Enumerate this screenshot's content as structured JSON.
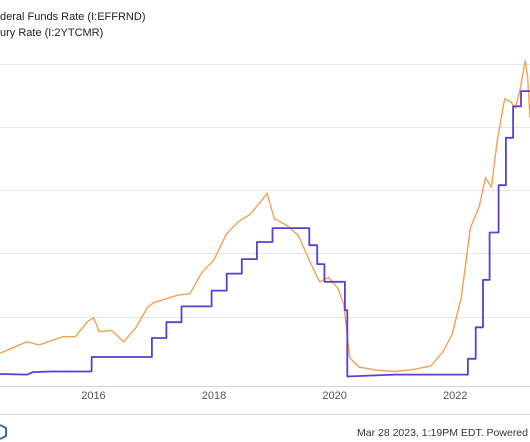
{
  "chart_data": {
    "type": "line",
    "title": "",
    "xlabel": "",
    "ylabel": "",
    "xlim": [
      2014.45,
      2023.24
    ],
    "ylim": [
      -0.1,
      5.3
    ],
    "y_gridlines": [
      1,
      2,
      3,
      4,
      5
    ],
    "grid": true,
    "x_ticks": [
      {
        "value": 2016,
        "label": "2016"
      },
      {
        "value": 2018,
        "label": "2018"
      },
      {
        "value": 2020,
        "label": "2020"
      },
      {
        "value": 2022,
        "label": "2022"
      }
    ],
    "legend": {
      "placement": "top-left",
      "entries": [
        {
          "text": "deral Funds Rate (I:EFFRND)",
          "color": "#5b3fd0"
        },
        {
          "text": "ury Rate (I:2YTCMR)",
          "color": "#f5a055"
        }
      ]
    },
    "series": [
      {
        "color": "#5b3fd0",
        "step": true,
        "points": [
          [
            2014.45,
            0.09
          ],
          [
            2014.9,
            0.08
          ],
          [
            2015.0,
            0.12
          ],
          [
            2015.3,
            0.13
          ],
          [
            2015.97,
            0.13
          ],
          [
            2015.97,
            0.36
          ],
          [
            2016.97,
            0.36
          ],
          [
            2016.97,
            0.66
          ],
          [
            2017.21,
            0.66
          ],
          [
            2017.21,
            0.91
          ],
          [
            2017.46,
            0.91
          ],
          [
            2017.46,
            1.16
          ],
          [
            2017.96,
            1.16
          ],
          [
            2017.96,
            1.41
          ],
          [
            2018.21,
            1.41
          ],
          [
            2018.21,
            1.68
          ],
          [
            2018.46,
            1.68
          ],
          [
            2018.46,
            1.91
          ],
          [
            2018.71,
            1.91
          ],
          [
            2018.71,
            2.18
          ],
          [
            2018.97,
            2.18
          ],
          [
            2018.97,
            2.4
          ],
          [
            2019.58,
            2.4
          ],
          [
            2019.58,
            2.13
          ],
          [
            2019.71,
            2.13
          ],
          [
            2019.71,
            1.83
          ],
          [
            2019.83,
            1.83
          ],
          [
            2019.83,
            1.55
          ],
          [
            2020.17,
            1.55
          ],
          [
            2020.17,
            1.1
          ],
          [
            2020.21,
            1.1
          ],
          [
            2020.21,
            0.05
          ],
          [
            2021.0,
            0.08
          ],
          [
            2021.5,
            0.08
          ],
          [
            2022.21,
            0.08
          ],
          [
            2022.21,
            0.33
          ],
          [
            2022.34,
            0.33
          ],
          [
            2022.34,
            0.83
          ],
          [
            2022.46,
            0.83
          ],
          [
            2022.46,
            1.58
          ],
          [
            2022.57,
            1.58
          ],
          [
            2022.57,
            2.33
          ],
          [
            2022.72,
            2.33
          ],
          [
            2022.72,
            3.08
          ],
          [
            2022.84,
            3.08
          ],
          [
            2022.84,
            3.83
          ],
          [
            2022.96,
            3.83
          ],
          [
            2022.96,
            4.33
          ],
          [
            2023.09,
            4.33
          ],
          [
            2023.09,
            4.57
          ],
          [
            2023.24,
            4.57
          ]
        ]
      },
      {
        "color": "#f5a055",
        "step": false,
        "points": [
          [
            2014.45,
            0.42
          ],
          [
            2014.7,
            0.52
          ],
          [
            2014.9,
            0.6
          ],
          [
            2015.1,
            0.55
          ],
          [
            2015.3,
            0.62
          ],
          [
            2015.5,
            0.68
          ],
          [
            2015.7,
            0.68
          ],
          [
            2015.9,
            0.92
          ],
          [
            2016.0,
            0.98
          ],
          [
            2016.1,
            0.76
          ],
          [
            2016.3,
            0.78
          ],
          [
            2016.5,
            0.6
          ],
          [
            2016.7,
            0.82
          ],
          [
            2016.9,
            1.15
          ],
          [
            2017.0,
            1.22
          ],
          [
            2017.2,
            1.28
          ],
          [
            2017.4,
            1.34
          ],
          [
            2017.6,
            1.36
          ],
          [
            2017.8,
            1.7
          ],
          [
            2018.0,
            1.9
          ],
          [
            2018.2,
            2.3
          ],
          [
            2018.4,
            2.5
          ],
          [
            2018.6,
            2.62
          ],
          [
            2018.8,
            2.85
          ],
          [
            2018.88,
            2.95
          ],
          [
            2019.0,
            2.55
          ],
          [
            2019.2,
            2.45
          ],
          [
            2019.4,
            2.28
          ],
          [
            2019.6,
            1.85
          ],
          [
            2019.75,
            1.55
          ],
          [
            2019.9,
            1.62
          ],
          [
            2020.05,
            1.45
          ],
          [
            2020.15,
            1.2
          ],
          [
            2020.25,
            0.35
          ],
          [
            2020.4,
            0.2
          ],
          [
            2020.7,
            0.15
          ],
          [
            2021.0,
            0.13
          ],
          [
            2021.3,
            0.16
          ],
          [
            2021.6,
            0.22
          ],
          [
            2021.8,
            0.45
          ],
          [
            2021.95,
            0.72
          ],
          [
            2022.1,
            1.3
          ],
          [
            2022.25,
            2.4
          ],
          [
            2022.4,
            2.75
          ],
          [
            2022.5,
            3.2
          ],
          [
            2022.6,
            3.05
          ],
          [
            2022.7,
            3.8
          ],
          [
            2022.82,
            4.45
          ],
          [
            2022.92,
            4.4
          ],
          [
            2023.0,
            4.3
          ],
          [
            2023.08,
            4.62
          ],
          [
            2023.16,
            5.05
          ],
          [
            2023.2,
            4.8
          ],
          [
            2023.24,
            4.15
          ]
        ]
      }
    ]
  },
  "footer": {
    "timestamp": "Mar 28 2023, 1:19PM EDT.  Powered"
  }
}
